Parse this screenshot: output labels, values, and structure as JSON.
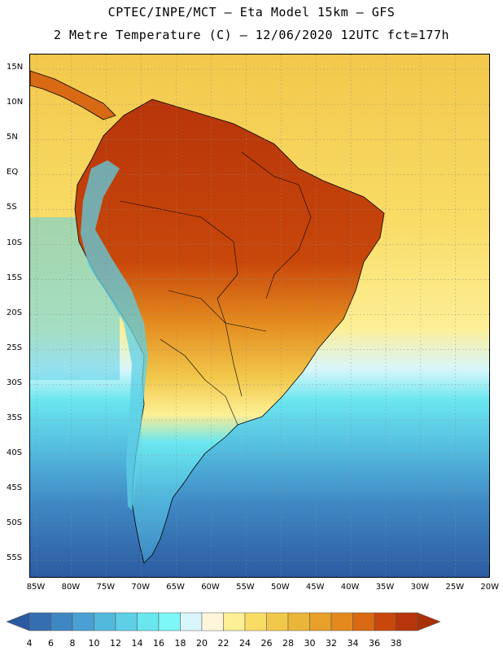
{
  "header": {
    "line1": "CPTEC/INPE/MCT –  Eta Model 15km – GFS",
    "line2": "2 Metre Temperature (C) – 12/06/2020 12UTC fct=177h"
  },
  "map": {
    "lat_labels": [
      "15N",
      "10N",
      "5N",
      "EQ",
      "5S",
      "10S",
      "15S",
      "20S",
      "25S",
      "30S",
      "35S",
      "40S",
      "45S",
      "50S",
      "55S"
    ],
    "lon_labels": [
      "85W",
      "80W",
      "75W",
      "70W",
      "65W",
      "60W",
      "55W",
      "50W",
      "45W",
      "40W",
      "35W",
      "30W",
      "25W",
      "20W"
    ]
  },
  "legend": {
    "ticks": [
      "4",
      "6",
      "8",
      "10",
      "12",
      "14",
      "16",
      "18",
      "20",
      "22",
      "24",
      "26",
      "28",
      "30",
      "32",
      "34",
      "36",
      "38"
    ],
    "colors": [
      "#2b5aa0",
      "#356fb0",
      "#3f87c3",
      "#4aa0d2",
      "#52b9dd",
      "#5dd0e6",
      "#6ae6ef",
      "#7df7f7",
      "#d8f6fb",
      "#fff6dc",
      "#fdef95",
      "#f9dc66",
      "#f2c84b",
      "#eab538",
      "#e8a02a",
      "#e38a1e",
      "#d96912",
      "#c8470a",
      "#b7350a",
      "#a83006"
    ]
  }
}
